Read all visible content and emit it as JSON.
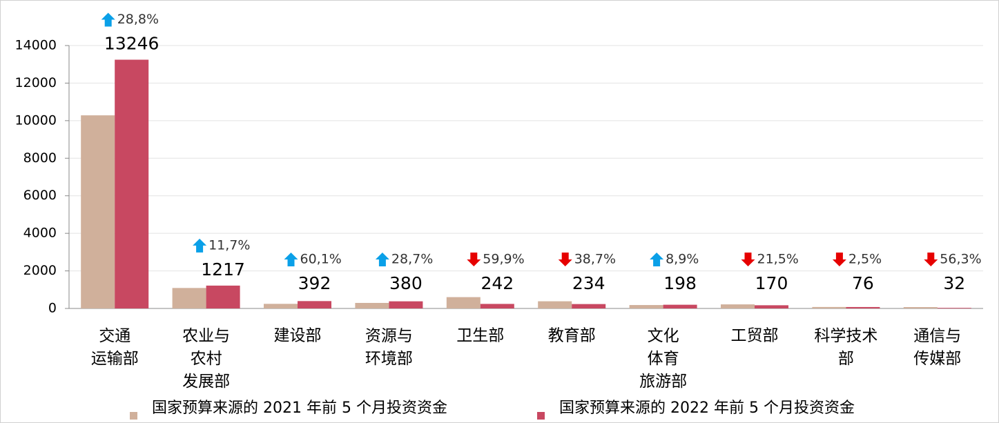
{
  "chart_data": {
    "type": "bar",
    "categories": [
      "交通\n运输部",
      "农业与\n农村\n发展部",
      "建设部",
      "资源与\n环境部",
      "卫生部",
      "教育部",
      "文化\n体育\n旅游部",
      "工贸部",
      "科学技术\n部",
      "通信与\n传媒部"
    ],
    "series": [
      {
        "name": "国家预算来源的 2021 年前 5 个月投资资金",
        "color": "#d0b09b",
        "values": [
          10284,
          1090,
          245,
          295,
          603,
          382,
          182,
          217,
          78,
          73
        ]
      },
      {
        "name": "国家预算来源的 2022 年前 5 个月投资资金",
        "color": "#c84861",
        "values": [
          13246,
          1217,
          392,
          380,
          242,
          234,
          198,
          170,
          76,
          32
        ]
      }
    ],
    "changes": [
      {
        "label": "28,8%",
        "direction": "up"
      },
      {
        "label": "11,7%",
        "direction": "up"
      },
      {
        "label": "60,1%",
        "direction": "up"
      },
      {
        "label": "28,7%",
        "direction": "up"
      },
      {
        "label": "59,9%",
        "direction": "down"
      },
      {
        "label": "38,7%",
        "direction": "down"
      },
      {
        "label": "8,9%",
        "direction": "up"
      },
      {
        "label": "21,5%",
        "direction": "down"
      },
      {
        "label": "2,5%",
        "direction": "down"
      },
      {
        "label": "56,3%",
        "direction": "down"
      }
    ],
    "ylim": [
      0,
      14000
    ],
    "yticks": [
      0,
      2000,
      4000,
      6000,
      8000,
      10000,
      12000,
      14000
    ],
    "grid": true,
    "legend": "bottom"
  }
}
